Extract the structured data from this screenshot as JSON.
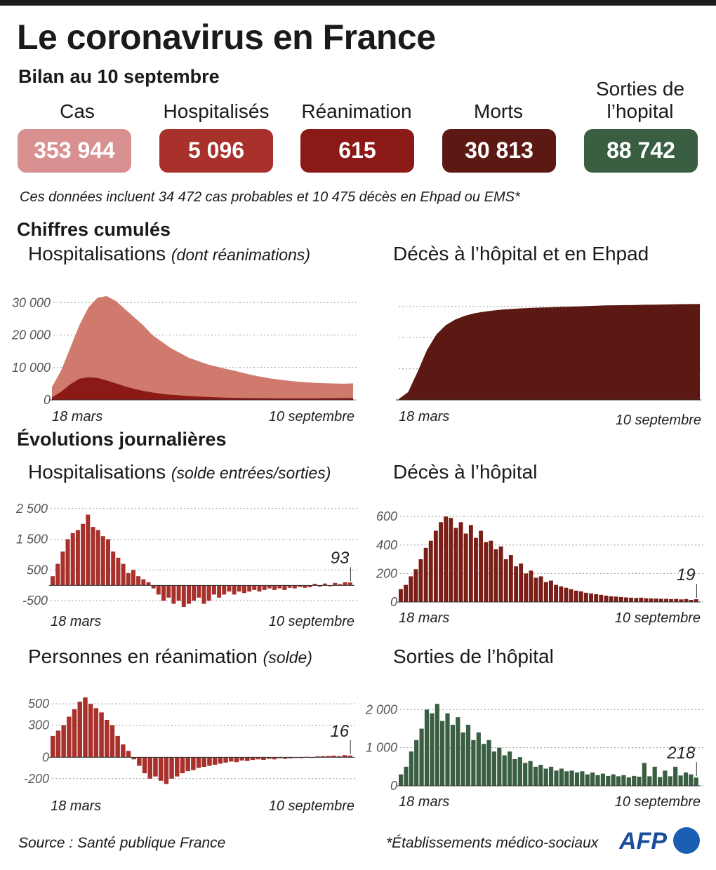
{
  "title": "Le coronavirus en France",
  "subtitle": "Bilan au 10 septembre",
  "stats": [
    {
      "label": "Cas",
      "value": "353 944",
      "color": "#d89090"
    },
    {
      "label": "Hospitalisés",
      "value": "5 096",
      "color": "#a8312c"
    },
    {
      "label": "Réanimation",
      "value": "615",
      "color": "#8b1a16"
    },
    {
      "label": "Morts",
      "value": "30 813",
      "color": "#5c1812"
    },
    {
      "label": "Sorties de l’hopital",
      "value": "88 742",
      "color": "#3a5e42"
    }
  ],
  "note": "Ces données incluent 34 472 cas probables et 10 475 décès en Ehpad ou EMS*",
  "sections": {
    "cumulative": "Chiffres cumulés",
    "daily": "Évolutions journalières"
  },
  "footer": {
    "source": "Source : Santé publique France",
    "footnote": "*Établissements médico-sociaux",
    "logo": "AFP"
  },
  "chart_data": [
    {
      "id": "cum_hosp",
      "type": "area",
      "title": "Hospitalisations",
      "title_note": "(dont réanimations)",
      "xlabel_start": "18 mars",
      "xlabel_end": "10 septembre",
      "ylim": [
        0,
        32000
      ],
      "yticks": [
        {
          "v": 0,
          "l": "0"
        },
        {
          "v": 10000,
          "l": "10 000"
        },
        {
          "v": 20000,
          "l": "20 000"
        },
        {
          "v": 30000,
          "l": "30 000"
        }
      ],
      "series": [
        {
          "values": [
            4000,
            9000,
            16000,
            23000,
            28500,
            31500,
            32000,
            30500,
            28000,
            25500,
            23000,
            20000,
            18000,
            16000,
            14500,
            13000,
            12000,
            11000,
            10300,
            9600,
            9000,
            8300,
            7600,
            7100,
            6600,
            6200,
            5900,
            5600,
            5400,
            5250,
            5150,
            5050,
            5000,
            5096
          ],
          "color": "#cf7a6c"
        },
        {
          "values": [
            800,
            2500,
            4800,
            6500,
            7000,
            6800,
            6000,
            5100,
            4200,
            3400,
            2800,
            2300,
            1900,
            1600,
            1400,
            1200,
            1050,
            900,
            800,
            700,
            650,
            600,
            560,
            530,
            510,
            500,
            490,
            490,
            500,
            520,
            540,
            570,
            600,
            615
          ],
          "color": "#8b1a16"
        }
      ]
    },
    {
      "id": "cum_deaths",
      "type": "area",
      "title": "Décès à l’hôpital et en Ehpad",
      "xlabel_start": "18 mars",
      "xlabel_end": "10 septembre",
      "ylim": [
        0,
        32000
      ],
      "series": [
        {
          "values": [
            300,
            2500,
            9000,
            16000,
            21000,
            24000,
            25800,
            27000,
            27800,
            28300,
            28700,
            29000,
            29200,
            29400,
            29550,
            29650,
            29750,
            29850,
            29950,
            30050,
            30150,
            30250,
            30350,
            30400,
            30450,
            30500,
            30550,
            30600,
            30650,
            30700,
            30750,
            30790,
            30813
          ],
          "color": "#5c1812"
        }
      ]
    },
    {
      "id": "daily_hosp",
      "type": "bar",
      "title": "Hospitalisations",
      "title_note": "(solde entrées/sorties)",
      "xlabel_start": "18 mars",
      "xlabel_end": "10 septembre",
      "ylim": [
        -700,
        2700
      ],
      "yticks": [
        {
          "v": -500,
          "l": "-500"
        },
        {
          "v": 500,
          "l": "500"
        },
        {
          "v": 1500,
          "l": "1 500"
        },
        {
          "v": 2500,
          "l": "2 500"
        }
      ],
      "series": [
        {
          "values": [
            300,
            700,
            1100,
            1500,
            1700,
            1800,
            2000,
            2300,
            1900,
            1800,
            1600,
            1500,
            1100,
            900,
            700,
            400,
            500,
            300,
            200,
            100,
            -100,
            -300,
            -500,
            -400,
            -600,
            -500,
            -700,
            -600,
            -500,
            -400,
            -600,
            -500,
            -300,
            -400,
            -300,
            -200,
            -300,
            -200,
            -250,
            -200,
            -150,
            -200,
            -150,
            -100,
            -150,
            -100,
            -150,
            -80,
            -100,
            -50,
            -80,
            -60,
            50,
            -40,
            60,
            -30,
            80,
            40,
            100,
            93
          ],
          "color": "#a8312c"
        }
      ],
      "last_label": "93"
    },
    {
      "id": "daily_deaths",
      "type": "bar",
      "title": "Décès à l’hôpital",
      "xlabel_start": "18 mars",
      "xlabel_end": "10 septembre",
      "ylim": [
        0,
        650
      ],
      "yticks": [
        {
          "v": 0,
          "l": "0"
        },
        {
          "v": 200,
          "l": "200"
        },
        {
          "v": 400,
          "l": "400"
        },
        {
          "v": 600,
          "l": "600"
        }
      ],
      "series": [
        {
          "values": [
            90,
            120,
            180,
            230,
            300,
            380,
            430,
            500,
            560,
            600,
            590,
            520,
            560,
            480,
            540,
            450,
            500,
            420,
            430,
            370,
            390,
            300,
            330,
            250,
            270,
            200,
            220,
            170,
            180,
            140,
            150,
            120,
            110,
            100,
            90,
            80,
            75,
            65,
            60,
            55,
            50,
            45,
            40,
            38,
            35,
            32,
            30,
            28,
            30,
            26,
            25,
            24,
            22,
            22,
            20,
            21,
            18,
            20,
            15,
            19
          ],
          "color": "#7a1e18"
        }
      ],
      "last_label": "19"
    },
    {
      "id": "daily_icu",
      "type": "bar",
      "title": "Personnes en réanimation",
      "title_note": "(solde)",
      "xlabel_start": "18 mars",
      "xlabel_end": "10 septembre",
      "ylim": [
        -300,
        580
      ],
      "yticks": [
        {
          "v": -200,
          "l": "-200"
        },
        {
          "v": 0,
          "l": "0"
        },
        {
          "v": 300,
          "l": "300"
        },
        {
          "v": 500,
          "l": "500"
        }
      ],
      "series": [
        {
          "values": [
            200,
            250,
            300,
            380,
            450,
            520,
            560,
            500,
            460,
            420,
            350,
            300,
            200,
            120,
            60,
            -20,
            -80,
            -150,
            -200,
            -180,
            -220,
            -250,
            -200,
            -180,
            -150,
            -130,
            -120,
            -100,
            -90,
            -80,
            -70,
            -60,
            -50,
            -40,
            -45,
            -30,
            -35,
            -25,
            -20,
            -25,
            -15,
            -20,
            -10,
            -15,
            -10,
            -5,
            -8,
            5,
            -5,
            8,
            10,
            12,
            15,
            10,
            20,
            16
          ],
          "color": "#a8312c"
        }
      ],
      "last_label": "16"
    },
    {
      "id": "daily_discharges",
      "type": "bar",
      "title": "Sorties de l’hôpital",
      "xlabel_start": "18 mars",
      "xlabel_end": "10 septembre",
      "ylim": [
        0,
        2300
      ],
      "yticks": [
        {
          "v": 0,
          "l": "0"
        },
        {
          "v": 1000,
          "l": "1 000"
        },
        {
          "v": 2000,
          "l": "2 000"
        }
      ],
      "series": [
        {
          "values": [
            300,
            500,
            900,
            1200,
            1500,
            2000,
            1900,
            2150,
            1700,
            1900,
            1600,
            1800,
            1400,
            1600,
            1200,
            1400,
            1100,
            1200,
            900,
            1000,
            800,
            900,
            700,
            750,
            600,
            650,
            500,
            550,
            450,
            500,
            400,
            450,
            380,
            400,
            350,
            380,
            300,
            350,
            280,
            320,
            260,
            300,
            250,
            280,
            220,
            260,
            240,
            600,
            250,
            500,
            230,
            400,
            250,
            500,
            270,
            350,
            300,
            218
          ],
          "color": "#3a5e42"
        }
      ],
      "last_label": "218"
    }
  ]
}
